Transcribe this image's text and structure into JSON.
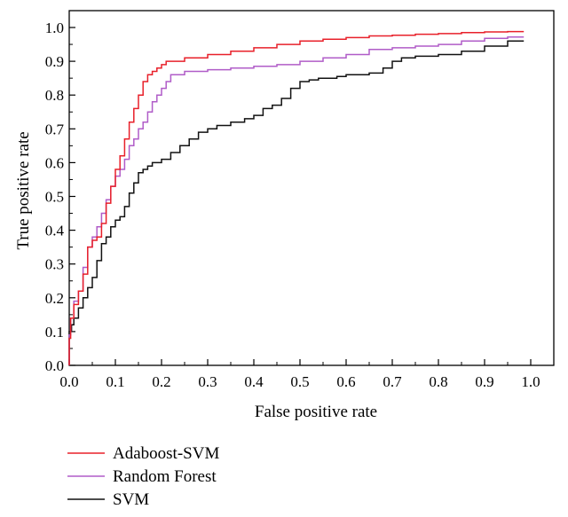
{
  "chart_data": {
    "type": "line",
    "title": "",
    "xlabel": "False positive rate",
    "ylabel": "True positive rate",
    "xlim": [
      0.0,
      1.05
    ],
    "ylim": [
      0.0,
      1.05
    ],
    "x_ticks": [
      "0.0",
      "0.1",
      "0.2",
      "0.3",
      "0.4",
      "0.5",
      "0.6",
      "0.7",
      "0.8",
      "0.9",
      "1.0"
    ],
    "y_ticks": [
      "0.0",
      "0.1",
      "0.2",
      "0.3",
      "0.4",
      "0.5",
      "0.6",
      "0.7",
      "0.8",
      "0.9",
      "1.0"
    ],
    "grid": false,
    "legend_position": "bottom-left, below plot",
    "series": [
      {
        "name": "Adaboost-SVM",
        "color": "#e8202a",
        "x": [
          0.0,
          0.003,
          0.01,
          0.02,
          0.03,
          0.04,
          0.05,
          0.06,
          0.07,
          0.08,
          0.09,
          0.1,
          0.11,
          0.12,
          0.13,
          0.14,
          0.15,
          0.16,
          0.17,
          0.18,
          0.19,
          0.2,
          0.21,
          0.22,
          0.23,
          0.25,
          0.3,
          0.35,
          0.4,
          0.45,
          0.5,
          0.55,
          0.6,
          0.65,
          0.7,
          0.75,
          0.8,
          0.85,
          0.9,
          0.95,
          0.985
        ],
        "y": [
          0.0,
          0.08,
          0.14,
          0.18,
          0.22,
          0.27,
          0.35,
          0.37,
          0.38,
          0.42,
          0.48,
          0.53,
          0.58,
          0.62,
          0.67,
          0.72,
          0.76,
          0.8,
          0.84,
          0.86,
          0.87,
          0.88,
          0.89,
          0.9,
          0.9,
          0.9,
          0.91,
          0.92,
          0.93,
          0.94,
          0.95,
          0.96,
          0.965,
          0.97,
          0.975,
          0.977,
          0.98,
          0.982,
          0.985,
          0.987,
          0.988
        ]
      },
      {
        "name": "Random Forest",
        "color": "#b05cc8",
        "x": [
          0.0,
          0.003,
          0.01,
          0.02,
          0.03,
          0.04,
          0.05,
          0.06,
          0.07,
          0.08,
          0.09,
          0.1,
          0.11,
          0.12,
          0.13,
          0.14,
          0.15,
          0.16,
          0.17,
          0.18,
          0.19,
          0.2,
          0.21,
          0.22,
          0.25,
          0.3,
          0.35,
          0.4,
          0.45,
          0.5,
          0.55,
          0.6,
          0.65,
          0.7,
          0.75,
          0.8,
          0.85,
          0.9,
          0.95,
          0.985
        ],
        "y": [
          0.0,
          0.09,
          0.14,
          0.19,
          0.22,
          0.29,
          0.35,
          0.38,
          0.41,
          0.45,
          0.49,
          0.53,
          0.56,
          0.58,
          0.61,
          0.65,
          0.67,
          0.7,
          0.72,
          0.75,
          0.78,
          0.8,
          0.82,
          0.84,
          0.86,
          0.87,
          0.875,
          0.88,
          0.885,
          0.89,
          0.9,
          0.91,
          0.92,
          0.935,
          0.94,
          0.945,
          0.95,
          0.96,
          0.968,
          0.972
        ]
      },
      {
        "name": "SVM",
        "color": "#111111",
        "x": [
          0.0,
          0.005,
          0.01,
          0.02,
          0.03,
          0.04,
          0.05,
          0.06,
          0.07,
          0.08,
          0.09,
          0.1,
          0.11,
          0.12,
          0.13,
          0.14,
          0.15,
          0.16,
          0.17,
          0.18,
          0.2,
          0.22,
          0.24,
          0.26,
          0.28,
          0.3,
          0.32,
          0.35,
          0.38,
          0.4,
          0.42,
          0.44,
          0.46,
          0.48,
          0.5,
          0.52,
          0.54,
          0.56,
          0.58,
          0.6,
          0.62,
          0.65,
          0.68,
          0.7,
          0.72,
          0.75,
          0.8,
          0.85,
          0.9,
          0.95,
          0.985
        ],
        "y": [
          0.0,
          0.1,
          0.12,
          0.14,
          0.17,
          0.2,
          0.23,
          0.26,
          0.31,
          0.36,
          0.38,
          0.41,
          0.43,
          0.44,
          0.47,
          0.51,
          0.54,
          0.57,
          0.58,
          0.59,
          0.6,
          0.61,
          0.63,
          0.65,
          0.67,
          0.69,
          0.7,
          0.71,
          0.72,
          0.73,
          0.74,
          0.76,
          0.77,
          0.79,
          0.82,
          0.84,
          0.845,
          0.85,
          0.85,
          0.855,
          0.86,
          0.86,
          0.865,
          0.88,
          0.9,
          0.91,
          0.915,
          0.92,
          0.93,
          0.945,
          0.96
        ]
      }
    ]
  }
}
